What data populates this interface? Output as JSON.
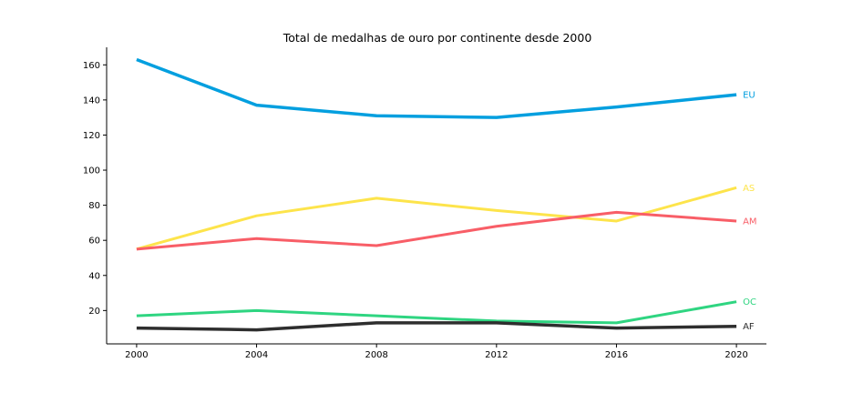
{
  "chart_data": {
    "type": "line",
    "title": "Total de medalhas de ouro por continente desde 2000",
    "xlabel": "",
    "ylabel": "",
    "x": [
      2000,
      2004,
      2008,
      2012,
      2016,
      2020
    ],
    "x_ticks": [
      "2000",
      "2004",
      "2008",
      "2012",
      "2016",
      "2020"
    ],
    "xlim": [
      1999,
      2021
    ],
    "ylim": [
      1,
      170
    ],
    "y_ticks": [
      "20",
      "40",
      "60",
      "80",
      "100",
      "120",
      "140",
      "160"
    ],
    "y_tick_values": [
      20,
      40,
      60,
      80,
      100,
      120,
      140,
      160
    ],
    "grid": false,
    "legend": "none (direct labels at line ends)",
    "series": [
      {
        "name": "EU",
        "color": "#039fdf",
        "width": 3.5,
        "values": [
          163,
          137,
          131,
          130,
          136,
          143
        ]
      },
      {
        "name": "AS",
        "color": "#fde44b",
        "width": 3,
        "values": [
          55,
          74,
          84,
          77,
          71,
          90
        ]
      },
      {
        "name": "AM",
        "color": "#f85e67",
        "width": 3,
        "values": [
          55,
          61,
          57,
          68,
          76,
          71
        ]
      },
      {
        "name": "OC",
        "color": "#2fd581",
        "width": 3,
        "values": [
          17,
          20,
          17,
          14,
          13,
          25
        ]
      },
      {
        "name": "AF",
        "color": "#2e2e2e",
        "width": 3.5,
        "values": [
          10,
          9,
          13,
          13,
          10,
          11
        ]
      }
    ]
  }
}
